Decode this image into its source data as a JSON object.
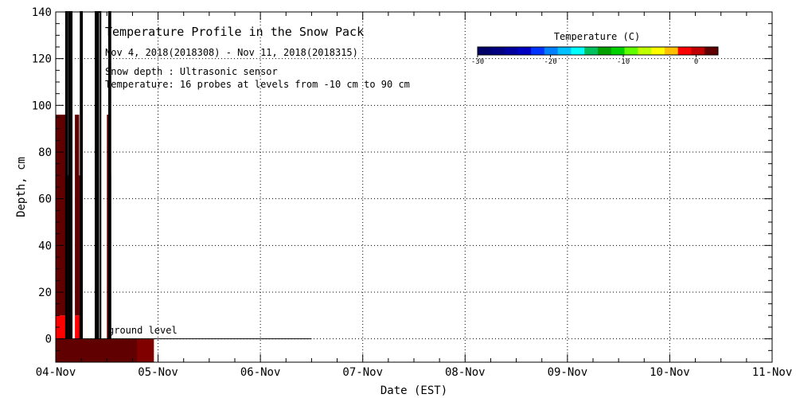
{
  "chart_data": {
    "type": "heatmap",
    "title": "Temperature Profile in the Snow Pack",
    "subtitle": "Nov  4, 2018(2018308) - Nov 11, 2018(2018315)",
    "notes": [
      "Snow depth : Ultrasonic sensor",
      "Temperature: 16 probes at levels from -10 cm to 90 cm"
    ],
    "annotation": "ground level",
    "xlabel": "Date (EST)",
    "ylabel": "Depth, cm",
    "x_ticks": [
      "04-Nov",
      "05-Nov",
      "06-Nov",
      "07-Nov",
      "08-Nov",
      "09-Nov",
      "10-Nov",
      "11-Nov"
    ],
    "x_range": [
      "2018-11-04",
      "2018-11-11"
    ],
    "y_ticks": [
      0,
      20,
      40,
      60,
      80,
      100,
      120,
      140
    ],
    "y_range": [
      -10,
      140
    ],
    "grid": true,
    "ground_level_line": {
      "depth": 0,
      "x_start": "2018-11-04 00:00",
      "x_end": "2018-11-06 12:00"
    },
    "colorbar": {
      "label": "Temperature (C)",
      "ticks": [
        -30,
        -20,
        -10,
        0
      ],
      "range": [
        -30,
        3
      ],
      "colors": [
        "#000066",
        "#000080",
        "#0000a0",
        "#0000c0",
        "#0033ff",
        "#0080ff",
        "#00c0ff",
        "#00ffff",
        "#00c060",
        "#00a000",
        "#00d000",
        "#60ff00",
        "#c0ff00",
        "#ffff00",
        "#ffc000",
        "#ff0000",
        "#c00000",
        "#600000"
      ]
    },
    "cells": [
      {
        "x_start": "2018-11-04 00:00",
        "x_end": "2018-11-04 02:24",
        "depth_low": 10,
        "depth_high": 96,
        "color": "#600000"
      },
      {
        "x_start": "2018-11-04 00:00",
        "x_end": "2018-11-04 02:24",
        "depth_low": 0,
        "depth_high": 10,
        "color": "#ff0000"
      },
      {
        "x_start": "2018-11-04 02:24",
        "x_end": "2018-11-04 03:36",
        "depth_low": 0,
        "depth_high": 70,
        "color": "#600000"
      },
      {
        "x_start": "2018-11-04 04:30",
        "x_end": "2018-11-04 05:30",
        "depth_low": 10,
        "depth_high": 96,
        "color": "#600000"
      },
      {
        "x_start": "2018-11-04 04:30",
        "x_end": "2018-11-04 05:30",
        "depth_low": 0,
        "depth_high": 10,
        "color": "#ff0000"
      },
      {
        "x_start": "2018-11-04 05:30",
        "x_end": "2018-11-04 05:50",
        "depth_low": 0,
        "depth_high": 70,
        "color": "#600000"
      },
      {
        "x_start": "2018-11-04 09:30",
        "x_end": "2018-11-04 10:00",
        "depth_low": 0,
        "depth_high": 70,
        "color": "#600000"
      },
      {
        "x_start": "2018-11-04 12:00",
        "x_end": "2018-11-04 12:36",
        "depth_low": 0,
        "depth_high": 96,
        "color": "#600000"
      },
      {
        "x_start": "2018-11-04 12:36",
        "x_end": "2018-11-04 13:00",
        "depth_low": 0,
        "depth_high": 70,
        "color": "#600000"
      },
      {
        "x_start": "2018-11-04 00:00",
        "x_end": "2018-11-04 23:00",
        "depth_low": -10,
        "depth_high": 0,
        "color": "#600000"
      },
      {
        "x_start": "2018-11-04 19:00",
        "x_end": "2018-11-04 23:00",
        "depth_low": -10,
        "depth_high": 0,
        "color": "#800000"
      }
    ],
    "snow_depth_segments": [
      {
        "x_start": "2018-11-04 02:24",
        "x_end": "2018-11-04 02:40",
        "depth_low": 0,
        "depth_high": 140
      },
      {
        "x_start": "2018-11-04 03:05",
        "x_end": "2018-11-04 03:20",
        "depth_low": 0,
        "depth_high": 140
      },
      {
        "x_start": "2018-11-04 03:30",
        "x_end": "2018-11-04 03:45",
        "depth_low": 0,
        "depth_high": 140
      },
      {
        "x_start": "2018-11-04 05:50",
        "x_end": "2018-11-04 06:10",
        "depth_low": 0,
        "depth_high": 140
      },
      {
        "x_start": "2018-11-04 09:20",
        "x_end": "2018-11-04 09:40",
        "depth_low": 0,
        "depth_high": 140
      },
      {
        "x_start": "2018-11-04 10:00",
        "x_end": "2018-11-04 10:30",
        "depth_low": 0,
        "depth_high": 140
      },
      {
        "x_start": "2018-11-04 12:30",
        "x_end": "2018-11-04 12:50",
        "depth_low": 0,
        "depth_high": 140
      }
    ]
  }
}
